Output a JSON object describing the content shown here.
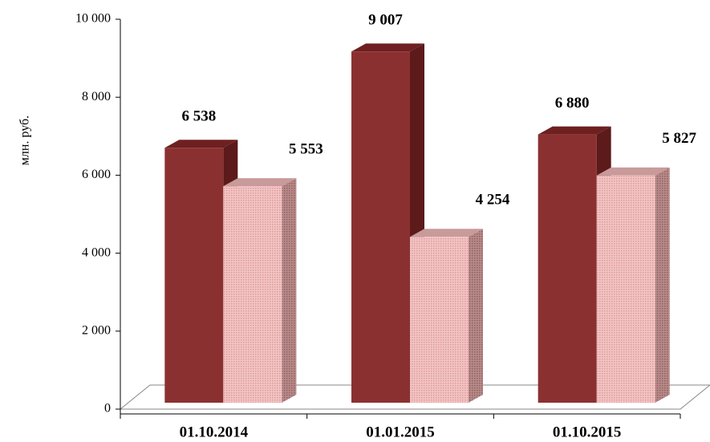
{
  "chart_data": {
    "type": "bar3d",
    "y_label": "млн. руб.",
    "categories": [
      "01.10.2014",
      "01.01.2015",
      "01.10.2015"
    ],
    "series": [
      {
        "color": "#8b3030",
        "values": [
          6538,
          9007,
          6880
        ],
        "value_labels": [
          "6 538",
          "9 007",
          "6 880"
        ]
      },
      {
        "color": "#efb9b9",
        "values": [
          5553,
          4254,
          5827
        ],
        "value_labels": [
          "5 553",
          "4 254",
          "5 827"
        ]
      }
    ],
    "ylim": [
      0,
      10000
    ],
    "yticks": [
      0,
      {
        "value": 2000,
        "label": "2 000"
      },
      {
        "value": 4000,
        "label": "4 000"
      },
      {
        "value": 6000,
        "label": "6 000"
      },
      {
        "value": 8000,
        "label": "8 000"
      },
      {
        "value": 10000,
        "label": "10 000"
      }
    ],
    "grid": false
  }
}
